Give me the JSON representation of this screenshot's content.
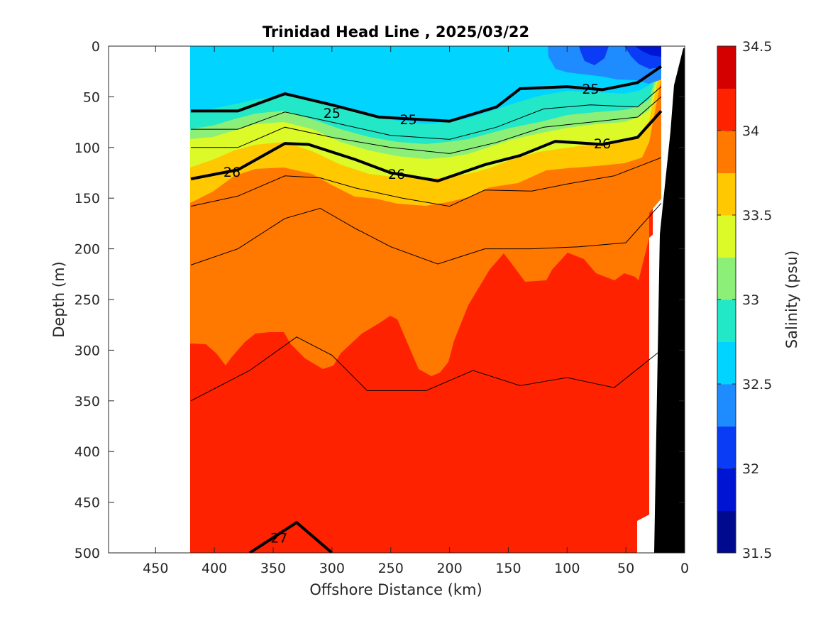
{
  "chart_data": {
    "type": "contour",
    "title": "Trinidad Head Line , 2025/03/22",
    "xlabel": "Offshore Distance (km)",
    "ylabel": "Depth (m)",
    "xlim": [
      490,
      0
    ],
    "ylim": [
      0,
      500
    ],
    "x_ticks": [
      450,
      400,
      350,
      300,
      250,
      200,
      150,
      100,
      50,
      0
    ],
    "y_ticks": [
      0,
      50,
      100,
      150,
      200,
      250,
      300,
      350,
      400,
      450,
      500
    ],
    "data_extent_x": [
      420,
      20
    ],
    "colorbar": {
      "label": "Salinity (psu)",
      "range": [
        31.5,
        34.5
      ],
      "ticks": [
        31.5,
        32,
        32.5,
        33,
        33.5,
        34,
        34.5
      ],
      "levels": [
        31.5,
        31.75,
        32,
        32.25,
        32.5,
        32.75,
        33,
        33.25,
        33.5,
        33.75,
        34,
        34.25,
        34.5
      ],
      "colors": [
        "#000a8f",
        "#0014d4",
        "#0a3cf5",
        "#1e8cff",
        "#00d4ff",
        "#23e8c8",
        "#8cf078",
        "#dcfa28",
        "#ffc800",
        "#ff7800",
        "#ff2200",
        "#d40000"
      ]
    },
    "density_contours": [
      {
        "level": 25,
        "label": "25",
        "depths_by_x": [
          [
            420,
            64
          ],
          [
            380,
            64
          ],
          [
            340,
            47
          ],
          [
            300,
            58
          ],
          [
            260,
            70
          ],
          [
            200,
            74
          ],
          [
            160,
            60
          ],
          [
            140,
            42
          ],
          [
            100,
            40
          ],
          [
            70,
            43
          ],
          [
            40,
            36
          ],
          [
            20,
            20
          ]
        ]
      },
      {
        "level": 26,
        "label": "26",
        "depths_by_x": [
          [
            420,
            131
          ],
          [
            380,
            122
          ],
          [
            340,
            96
          ],
          [
            320,
            97
          ],
          [
            280,
            112
          ],
          [
            250,
            125
          ],
          [
            210,
            133
          ],
          [
            170,
            117
          ],
          [
            140,
            108
          ],
          [
            110,
            94
          ],
          [
            70,
            97
          ],
          [
            40,
            90
          ],
          [
            20,
            64
          ]
        ]
      },
      {
        "level": 27,
        "label": "27",
        "depths_by_x": [
          [
            370,
            500
          ],
          [
            330,
            470
          ],
          [
            300,
            500
          ]
        ]
      }
    ],
    "thin_contours": [
      [
        [
          420,
          82
        ],
        [
          380,
          82
        ],
        [
          340,
          65
        ],
        [
          300,
          75
        ],
        [
          250,
          88
        ],
        [
          200,
          92
        ],
        [
          160,
          80
        ],
        [
          120,
          62
        ],
        [
          80,
          58
        ],
        [
          40,
          60
        ],
        [
          20,
          40
        ]
      ],
      [
        [
          420,
          100
        ],
        [
          380,
          100
        ],
        [
          340,
          80
        ],
        [
          300,
          90
        ],
        [
          250,
          100
        ],
        [
          200,
          106
        ],
        [
          160,
          95
        ],
        [
          120,
          80
        ],
        [
          80,
          75
        ],
        [
          40,
          70
        ],
        [
          20,
          50
        ]
      ],
      [
        [
          420,
          158
        ],
        [
          380,
          148
        ],
        [
          340,
          128
        ],
        [
          310,
          130
        ],
        [
          280,
          140
        ],
        [
          240,
          150
        ],
        [
          200,
          158
        ],
        [
          170,
          142
        ],
        [
          130,
          143
        ],
        [
          100,
          136
        ],
        [
          60,
          128
        ],
        [
          20,
          110
        ]
      ],
      [
        [
          420,
          216
        ],
        [
          380,
          200
        ],
        [
          340,
          170
        ],
        [
          310,
          160
        ],
        [
          280,
          180
        ],
        [
          250,
          198
        ],
        [
          210,
          215
        ],
        [
          170,
          200
        ],
        [
          130,
          200
        ],
        [
          90,
          198
        ],
        [
          50,
          194
        ],
        [
          20,
          155
        ]
      ],
      [
        [
          420,
          350
        ],
        [
          370,
          320
        ],
        [
          330,
          287
        ],
        [
          300,
          305
        ],
        [
          270,
          340
        ],
        [
          220,
          340
        ],
        [
          180,
          320
        ],
        [
          140,
          335
        ],
        [
          100,
          327
        ],
        [
          60,
          337
        ],
        [
          20,
          300
        ]
      ]
    ]
  }
}
